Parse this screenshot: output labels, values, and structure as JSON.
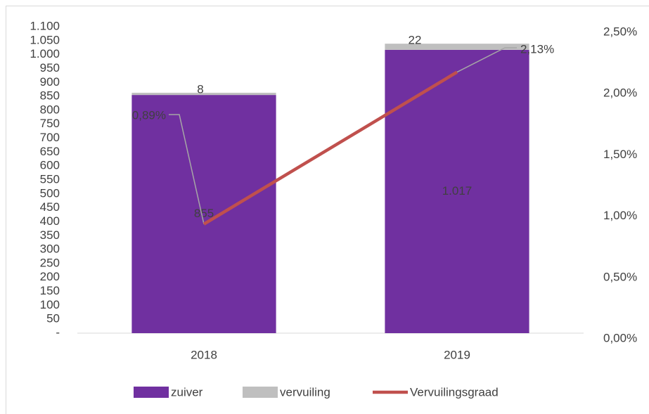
{
  "chart_data": {
    "type": "bar",
    "stacked": true,
    "categories": [
      "2018",
      "2019"
    ],
    "series": [
      {
        "name": "zuiver",
        "color": "#7030a0",
        "values": [
          855,
          1017
        ],
        "value_labels": [
          "855",
          "1.017"
        ]
      },
      {
        "name": "vervuiling",
        "color": "#bfbfbf",
        "values": [
          8,
          22
        ]
      },
      {
        "name": "Vervuilingsgraad",
        "color": "#c0504d",
        "type": "line",
        "axis": "y2",
        "values": [
          0.89,
          2.13
        ],
        "value_labels": [
          "0,89%",
          "2,13%"
        ]
      }
    ],
    "ylim": [
      0,
      1100
    ],
    "yticks": [
      {
        "value": 0,
        "label": "-"
      },
      50,
      100,
      150,
      200,
      250,
      300,
      350,
      400,
      450,
      500,
      550,
      600,
      650,
      700,
      750,
      800,
      850,
      900,
      950,
      {
        "value": 1000,
        "label": "1.000"
      },
      {
        "value": 1050,
        "label": "1.050"
      },
      {
        "value": 1100,
        "label": "1.100"
      }
    ],
    "y2lim": [
      0,
      2.5
    ],
    "y2ticks": [
      {
        "value": 0,
        "label": "0,00%"
      },
      {
        "value": 0.5,
        "label": "0,50%"
      },
      {
        "value": 1,
        "label": "1,00%"
      },
      {
        "value": 1.5,
        "label": "1,50%"
      },
      {
        "value": 2,
        "label": "2,00%"
      },
      {
        "value": 2.5,
        "label": "2,50%"
      }
    ],
    "legend": "bottom"
  }
}
